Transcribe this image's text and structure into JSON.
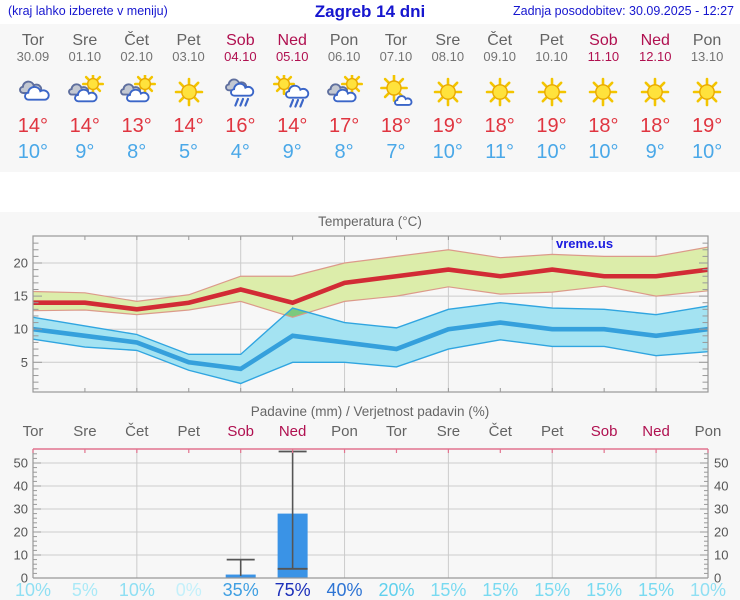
{
  "header": {
    "left_note": "(kraj lahko izberete v meniju)",
    "title": "Zagreb 14 dni",
    "updated": "Zadnja posodobitev: 30.09.2025 - 12:27"
  },
  "days": [
    {
      "name": "Tor",
      "date": "30.09",
      "weekend": false,
      "icon": "cloudy",
      "tmax": "14°",
      "tmin": "10°"
    },
    {
      "name": "Sre",
      "date": "01.10",
      "weekend": false,
      "icon": "sun-cloud",
      "tmax": "14°",
      "tmin": "9°"
    },
    {
      "name": "Čet",
      "date": "02.10",
      "weekend": false,
      "icon": "sun-cloud",
      "tmax": "13°",
      "tmin": "8°"
    },
    {
      "name": "Pet",
      "date": "03.10",
      "weekend": false,
      "icon": "sunny",
      "tmax": "14°",
      "tmin": "5°"
    },
    {
      "name": "Sob",
      "date": "04.10",
      "weekend": true,
      "icon": "rain",
      "tmax": "16°",
      "tmin": "4°"
    },
    {
      "name": "Ned",
      "date": "05.10",
      "weekend": true,
      "icon": "sun-rain",
      "tmax": "14°",
      "tmin": "9°"
    },
    {
      "name": "Pon",
      "date": "06.10",
      "weekend": false,
      "icon": "sun-cloud",
      "tmax": "17°",
      "tmin": "8°"
    },
    {
      "name": "Tor",
      "date": "07.10",
      "weekend": false,
      "icon": "sunny-cloud",
      "tmax": "18°",
      "tmin": "7°"
    },
    {
      "name": "Sre",
      "date": "08.10",
      "weekend": false,
      "icon": "sunny",
      "tmax": "19°",
      "tmin": "10°"
    },
    {
      "name": "Čet",
      "date": "09.10",
      "weekend": false,
      "icon": "sunny",
      "tmax": "18°",
      "tmin": "11°"
    },
    {
      "name": "Pet",
      "date": "10.10",
      "weekend": false,
      "icon": "sunny",
      "tmax": "19°",
      "tmin": "10°"
    },
    {
      "name": "Sob",
      "date": "11.10",
      "weekend": true,
      "icon": "sunny",
      "tmax": "18°",
      "tmin": "10°"
    },
    {
      "name": "Ned",
      "date": "12.10",
      "weekend": true,
      "icon": "sunny",
      "tmax": "18°",
      "tmin": "9°"
    },
    {
      "name": "Pon",
      "date": "13.10",
      "weekend": false,
      "icon": "sunny",
      "tmax": "19°",
      "tmin": "10°"
    }
  ],
  "chart_data": [
    {
      "type": "area",
      "title": "Temperatura (°C)",
      "watermark": "vreme.us",
      "categories": [
        "Tor",
        "Sre",
        "Čet",
        "Pet",
        "Sob",
        "Ned",
        "Pon",
        "Tor",
        "Sre",
        "Čet",
        "Pet",
        "Sob",
        "Ned",
        "Pon"
      ],
      "y_ticks": [
        5,
        10,
        15,
        20
      ],
      "ylim": [
        0.5,
        24.1
      ],
      "grid_x_every_n_days": 2,
      "series": [
        {
          "name": "max_temp",
          "color": "#d22b35",
          "values": [
            14,
            14,
            13,
            14,
            16,
            14,
            17,
            18,
            19,
            18,
            19,
            18,
            18,
            19
          ]
        },
        {
          "name": "max_range_hi",
          "values": [
            15.7,
            15.5,
            14.2,
            15.2,
            18,
            18,
            20,
            21,
            22,
            20.8,
            21.3,
            21,
            21,
            22.4
          ]
        },
        {
          "name": "max_range_lo",
          "values": [
            12.8,
            12.9,
            12.2,
            12.9,
            14.2,
            11.8,
            14.2,
            15,
            16.4,
            15.3,
            15.6,
            16.5,
            15,
            15.8
          ]
        },
        {
          "name": "min_temp",
          "color": "#35a0dc",
          "values": [
            10,
            9,
            8,
            5,
            4,
            9,
            8,
            7,
            10,
            11,
            10,
            10,
            9,
            10
          ]
        },
        {
          "name": "min_range_hi",
          "values": [
            11.8,
            10.5,
            9.2,
            6.2,
            6.2,
            13.2,
            11,
            10.2,
            13,
            14,
            13.2,
            13,
            12.2,
            13.5
          ]
        },
        {
          "name": "min_range_lo",
          "values": [
            8.5,
            7.3,
            6.8,
            3.8,
            1.8,
            5,
            5,
            4.3,
            7,
            8.4,
            7.4,
            7.4,
            6,
            6.6
          ]
        }
      ],
      "band_colors": {
        "max_fill": "#dcedaa",
        "max_edge": "#dc9a8a",
        "min_fill": "#a4e3f2",
        "min_edge": "#30a5e0",
        "overlap_fill": "#7cc97e"
      },
      "grid_color": "#cccccc",
      "spine_color": "#999999",
      "tick_label_color": "#555555"
    },
    {
      "type": "bar",
      "title": "Padavine (mm) / Verjetnost padavin (%)",
      "categories": [
        "Tor",
        "Sre",
        "Čet",
        "Pet",
        "Sob",
        "Ned",
        "Pon",
        "Tor",
        "Sre",
        "Čet",
        "Pet",
        "Sob",
        "Ned",
        "Pon"
      ],
      "weekend_flags": [
        false,
        false,
        false,
        false,
        true,
        true,
        false,
        false,
        false,
        false,
        false,
        true,
        true,
        false
      ],
      "values": [
        0,
        0,
        0,
        0,
        1.5,
        28,
        0,
        0,
        0,
        0,
        0,
        0,
        0,
        0
      ],
      "whiskers": [
        null,
        null,
        null,
        null,
        [
          0,
          8
        ],
        [
          4,
          55
        ],
        null,
        null,
        null,
        null,
        null,
        null,
        null,
        null
      ],
      "y_ticks": [
        0,
        10,
        20,
        30,
        40,
        50
      ],
      "ylim": [
        0,
        56
      ],
      "bar_color": "#3a93e6",
      "whisker_color": "#555555",
      "top_spine_color": "#e2738f",
      "grid_color": "#cccccc",
      "spine_color": "#999999",
      "tick_label_color": "#555555",
      "probabilities": [
        {
          "label": "10%",
          "color": "#8fdff3"
        },
        {
          "label": "5%",
          "color": "#aae9f7"
        },
        {
          "label": "10%",
          "color": "#8fdff3"
        },
        {
          "label": "0%",
          "color": "#c4f0fa"
        },
        {
          "label": "35%",
          "color": "#3f9fe2"
        },
        {
          "label": "75%",
          "color": "#1c30ba"
        },
        {
          "label": "40%",
          "color": "#2d74d4"
        },
        {
          "label": "20%",
          "color": "#5fd0ed"
        },
        {
          "label": "15%",
          "color": "#79daf1"
        },
        {
          "label": "15%",
          "color": "#79daf1"
        },
        {
          "label": "15%",
          "color": "#79daf1"
        },
        {
          "label": "15%",
          "color": "#79daf1"
        },
        {
          "label": "15%",
          "color": "#79daf1"
        },
        {
          "label": "10%",
          "color": "#8fdff3"
        }
      ]
    }
  ]
}
